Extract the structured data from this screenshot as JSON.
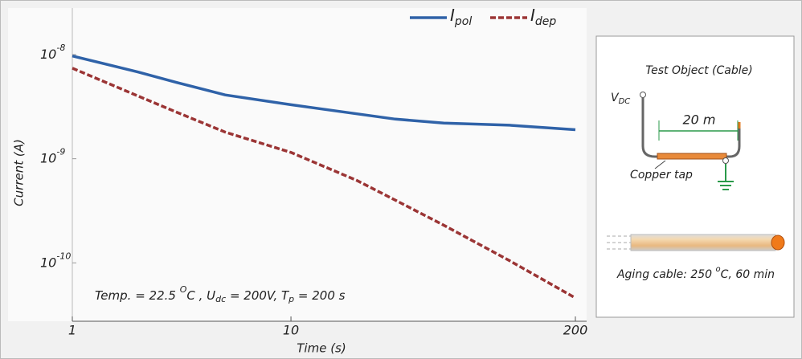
{
  "chart_data": {
    "type": "line",
    "log_x": true,
    "log_y": true,
    "xlabel": "Time (s)",
    "ylabel": "Current (A)",
    "x": [
      1,
      2,
      3,
      5,
      10,
      20,
      30,
      50,
      100,
      200
    ],
    "series": [
      {
        "name": "I",
        "sub": "pol",
        "color": "#2f62a8",
        "dash": false,
        "values": [
          9.7e-09,
          6.8e-09,
          5.4e-09,
          4.1e-09,
          3.3e-09,
          2.7e-09,
          2.4e-09,
          2.2e-09,
          2.1e-09,
          1.9e-09
        ]
      },
      {
        "name": "I",
        "sub": "dep",
        "color": "#9b3535",
        "dash": true,
        "values": [
          7.4e-09,
          4e-09,
          2.8e-09,
          1.8e-09,
          1.15e-09,
          6.2e-10,
          4e-10,
          2.3e-10,
          1.05e-10,
          4.6e-11
        ]
      }
    ],
    "xlim": [
      1,
      200
    ],
    "xticks": [
      1,
      10,
      200
    ],
    "ylim": [
      2.75e-11,
      2.8e-08
    ],
    "yticks": [
      {
        "value": 1e-08,
        "label": "10",
        "sup": "-8"
      },
      {
        "value": 1e-09,
        "label": "10",
        "sup": "-9"
      },
      {
        "value": 1e-10,
        "label": "10",
        "sup": "-10"
      }
    ],
    "annotation": [
      {
        "text": "Temp. = 22.5 "
      },
      {
        "text": "O",
        "sup": true
      },
      {
        "text": "C , U"
      },
      {
        "text": "dc",
        "sub": true
      },
      {
        "text": " = 200V, T"
      },
      {
        "text": "p",
        "sub": true
      },
      {
        "text": " = 200 s"
      }
    ]
  },
  "inset": {
    "title": "Test Object (Cable)",
    "vdc": "V",
    "vdc_sub": "DC",
    "length": "20 m",
    "tap": "Copper tap",
    "aging": [
      {
        "text": "Aging cable: 250 "
      },
      {
        "text": "o",
        "sup": true
      },
      {
        "text": "C, 60 min"
      }
    ]
  }
}
